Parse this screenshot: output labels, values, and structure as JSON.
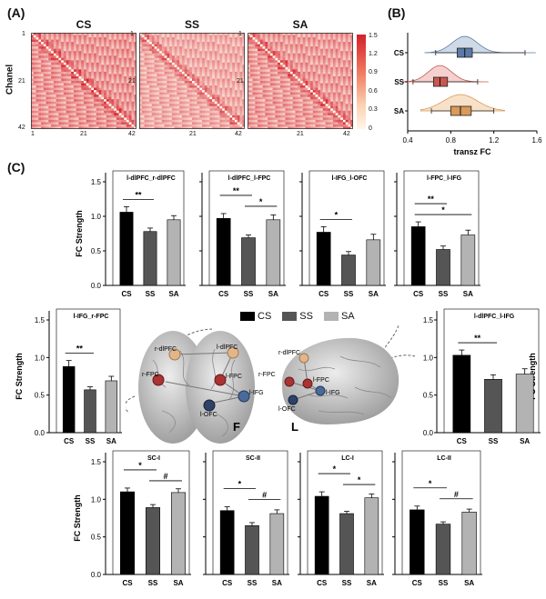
{
  "panel_labels": {
    "a": "(A)",
    "b": "(B)",
    "c": "(C)"
  },
  "panel_a": {
    "ylabel": "Chanel",
    "tick_labels": [
      "1",
      "21",
      "42"
    ],
    "matrices": [
      {
        "title": "CS",
        "mean_intensity": 0.9
      },
      {
        "title": "SS",
        "mean_intensity": 0.7
      },
      {
        "title": "SA",
        "mean_intensity": 0.85
      }
    ],
    "colorbar": {
      "ticks": [
        "1.5",
        "1.2",
        "0.9",
        "0.6",
        "0.3",
        "0"
      ],
      "colors": [
        "#d4202b",
        "#fff5ea"
      ]
    }
  },
  "legend": {
    "items": [
      {
        "label": "CS",
        "color": "#000000"
      },
      {
        "label": "SS",
        "color": "#555555"
      },
      {
        "label": "SA",
        "color": "#b3b3b3"
      }
    ]
  },
  "brain": {
    "front_letter": "F",
    "side_letter": "L",
    "front_labels": [
      "r-dlPFC",
      "l-dlPFC",
      "r-FPC",
      "l-FPC",
      "l-OFC",
      "l-IFG"
    ],
    "side_labels": [
      "r-dlPFC",
      "r-FPC",
      "l-FPC",
      "l-OFC",
      "l-IFG"
    ]
  },
  "chart_data": [
    {
      "type": "box",
      "xlabel": "transz FC",
      "categories": [
        "CS",
        "SS",
        "SA"
      ],
      "xticks": [
        "0.4",
        "0.8",
        "1.2",
        "1.6"
      ],
      "xlim": [
        0.4,
        1.6
      ],
      "colors": [
        "#5b7aa6",
        "#c9574f",
        "#d99a5a"
      ],
      "fills": [
        "#c7d3e3",
        "#f2c9c6",
        "#f6dcc0"
      ],
      "series": [
        {
          "name": "CS",
          "whisker_low": 0.66,
          "q1": 0.86,
          "median": 0.93,
          "q3": 1.0,
          "whisker_high": 1.49
        },
        {
          "name": "SS",
          "whisker_low": 0.45,
          "q1": 0.64,
          "median": 0.7,
          "q3": 0.77,
          "whisker_high": 1.05
        },
        {
          "name": "SA",
          "whisker_low": 0.62,
          "q1": 0.8,
          "median": 0.89,
          "q3": 0.99,
          "whisker_high": 1.2
        }
      ]
    },
    {
      "type": "bar",
      "title": "l-dlPFC_r-dlPFC",
      "ylabel": "FC Strength",
      "categories": [
        "CS",
        "SS",
        "SA"
      ],
      "values": [
        1.06,
        0.78,
        0.95
      ],
      "errors": [
        0.08,
        0.05,
        0.06
      ],
      "ylim": [
        0,
        1.5
      ],
      "yticks": [
        "0.0",
        "0.5",
        "1.0",
        "1.5"
      ],
      "sig": [
        {
          "a": 0,
          "b": 1,
          "label": "**",
          "level": 0
        }
      ]
    },
    {
      "type": "bar",
      "title": "l-dlPFC_l-FPC",
      "ylabel": "",
      "categories": [
        "CS",
        "SS",
        "SA"
      ],
      "values": [
        0.97,
        0.69,
        0.95
      ],
      "errors": [
        0.07,
        0.04,
        0.07
      ],
      "ylim": [
        0,
        1.5
      ],
      "yticks": [
        "0.0",
        "0.5",
        "1.0",
        "1.5"
      ],
      "sig": [
        {
          "a": 0,
          "b": 1,
          "label": "**",
          "level": 1
        },
        {
          "a": 1,
          "b": 2,
          "label": "*",
          "level": 0
        }
      ]
    },
    {
      "type": "bar",
      "title": "l-IFG_l-OFC",
      "ylabel": "",
      "categories": [
        "CS",
        "SS",
        "SA"
      ],
      "values": [
        0.77,
        0.44,
        0.66
      ],
      "errors": [
        0.08,
        0.05,
        0.08
      ],
      "ylim": [
        0,
        1.5
      ],
      "yticks": [
        "0.0",
        "0.5",
        "1.0",
        "1.5"
      ],
      "sig": [
        {
          "a": 0,
          "b": 1,
          "label": "*",
          "level": 0
        }
      ]
    },
    {
      "type": "bar",
      "title": "l-FPC_l-IFG",
      "ylabel": "",
      "categories": [
        "CS",
        "SS",
        "SA"
      ],
      "values": [
        0.85,
        0.52,
        0.73
      ],
      "errors": [
        0.07,
        0.05,
        0.07
      ],
      "ylim": [
        0,
        1.5
      ],
      "yticks": [
        "0.0",
        "0.5",
        "1.0",
        "1.5"
      ],
      "sig": [
        {
          "a": 0,
          "b": 1,
          "label": "**",
          "level": 1
        },
        {
          "a": 0,
          "b": 2,
          "label": "*",
          "level": 0
        }
      ]
    },
    {
      "type": "bar",
      "title": "l-IFG_r-FPC",
      "ylabel": "FC Strength",
      "categories": [
        "CS",
        "SS",
        "SA"
      ],
      "values": [
        0.88,
        0.57,
        0.69
      ],
      "errors": [
        0.08,
        0.04,
        0.06
      ],
      "ylim": [
        0,
        1.5
      ],
      "yticks": [
        "0.0",
        "0.5",
        "1.0",
        "1.5"
      ],
      "sig": [
        {
          "a": 0,
          "b": 1,
          "label": "**",
          "level": 0
        }
      ]
    },
    {
      "type": "bar",
      "title": "l-dlPFC_l-IFG",
      "ylabel": "FC Strength",
      "categories": [
        "CS",
        "SS",
        "SA"
      ],
      "values": [
        1.03,
        0.71,
        0.78
      ],
      "errors": [
        0.07,
        0.06,
        0.07
      ],
      "ylim": [
        0,
        1.5
      ],
      "yticks": [
        "0.0",
        "0.5",
        "1.0",
        "1.5"
      ],
      "sig": [
        {
          "a": 0,
          "b": 1,
          "label": "**",
          "level": 0
        }
      ]
    },
    {
      "type": "bar",
      "title": "SC-I",
      "ylabel": "FC Strength",
      "categories": [
        "CS",
        "SS",
        "SA"
      ],
      "values": [
        1.1,
        0.89,
        1.09
      ],
      "errors": [
        0.05,
        0.04,
        0.05
      ],
      "ylim": [
        0,
        1.5
      ],
      "yticks": [
        "0.0",
        "0.5",
        "1.0",
        "1.5"
      ],
      "sig": [
        {
          "a": 0,
          "b": 1,
          "label": "*",
          "level": 1
        },
        {
          "a": 1,
          "b": 2,
          "label": "#",
          "level": 0
        }
      ]
    },
    {
      "type": "bar",
      "title": "SC-II",
      "ylabel": "",
      "categories": [
        "CS",
        "SS",
        "SA"
      ],
      "values": [
        0.85,
        0.65,
        0.81
      ],
      "errors": [
        0.05,
        0.04,
        0.05
      ],
      "ylim": [
        0,
        1.5
      ],
      "yticks": [
        "0.0",
        "0.5",
        "1.0",
        "1.5"
      ],
      "sig": [
        {
          "a": 0,
          "b": 1,
          "label": "*",
          "level": 1
        },
        {
          "a": 1,
          "b": 2,
          "label": "#",
          "level": 0
        }
      ]
    },
    {
      "type": "bar",
      "title": "LC-I",
      "ylabel": "",
      "categories": [
        "CS",
        "SS",
        "SA"
      ],
      "values": [
        1.04,
        0.81,
        1.02
      ],
      "errors": [
        0.06,
        0.03,
        0.05
      ],
      "ylim": [
        0,
        1.5
      ],
      "yticks": [
        "0.0",
        "0.5",
        "1.0",
        "1.5"
      ],
      "sig": [
        {
          "a": 0,
          "b": 1,
          "label": "*",
          "level": 1
        },
        {
          "a": 1,
          "b": 2,
          "label": "*",
          "level": 0
        }
      ]
    },
    {
      "type": "bar",
      "title": "LC-II",
      "ylabel": "",
      "categories": [
        "CS",
        "SS",
        "SA"
      ],
      "values": [
        0.86,
        0.67,
        0.83
      ],
      "errors": [
        0.05,
        0.03,
        0.04
      ],
      "ylim": [
        0,
        1.5
      ],
      "yticks": [
        "0.0",
        "0.5",
        "1.0",
        "1.5"
      ],
      "sig": [
        {
          "a": 0,
          "b": 1,
          "label": "*",
          "level": 1
        },
        {
          "a": 1,
          "b": 2,
          "label": "#",
          "level": 0
        }
      ]
    }
  ]
}
